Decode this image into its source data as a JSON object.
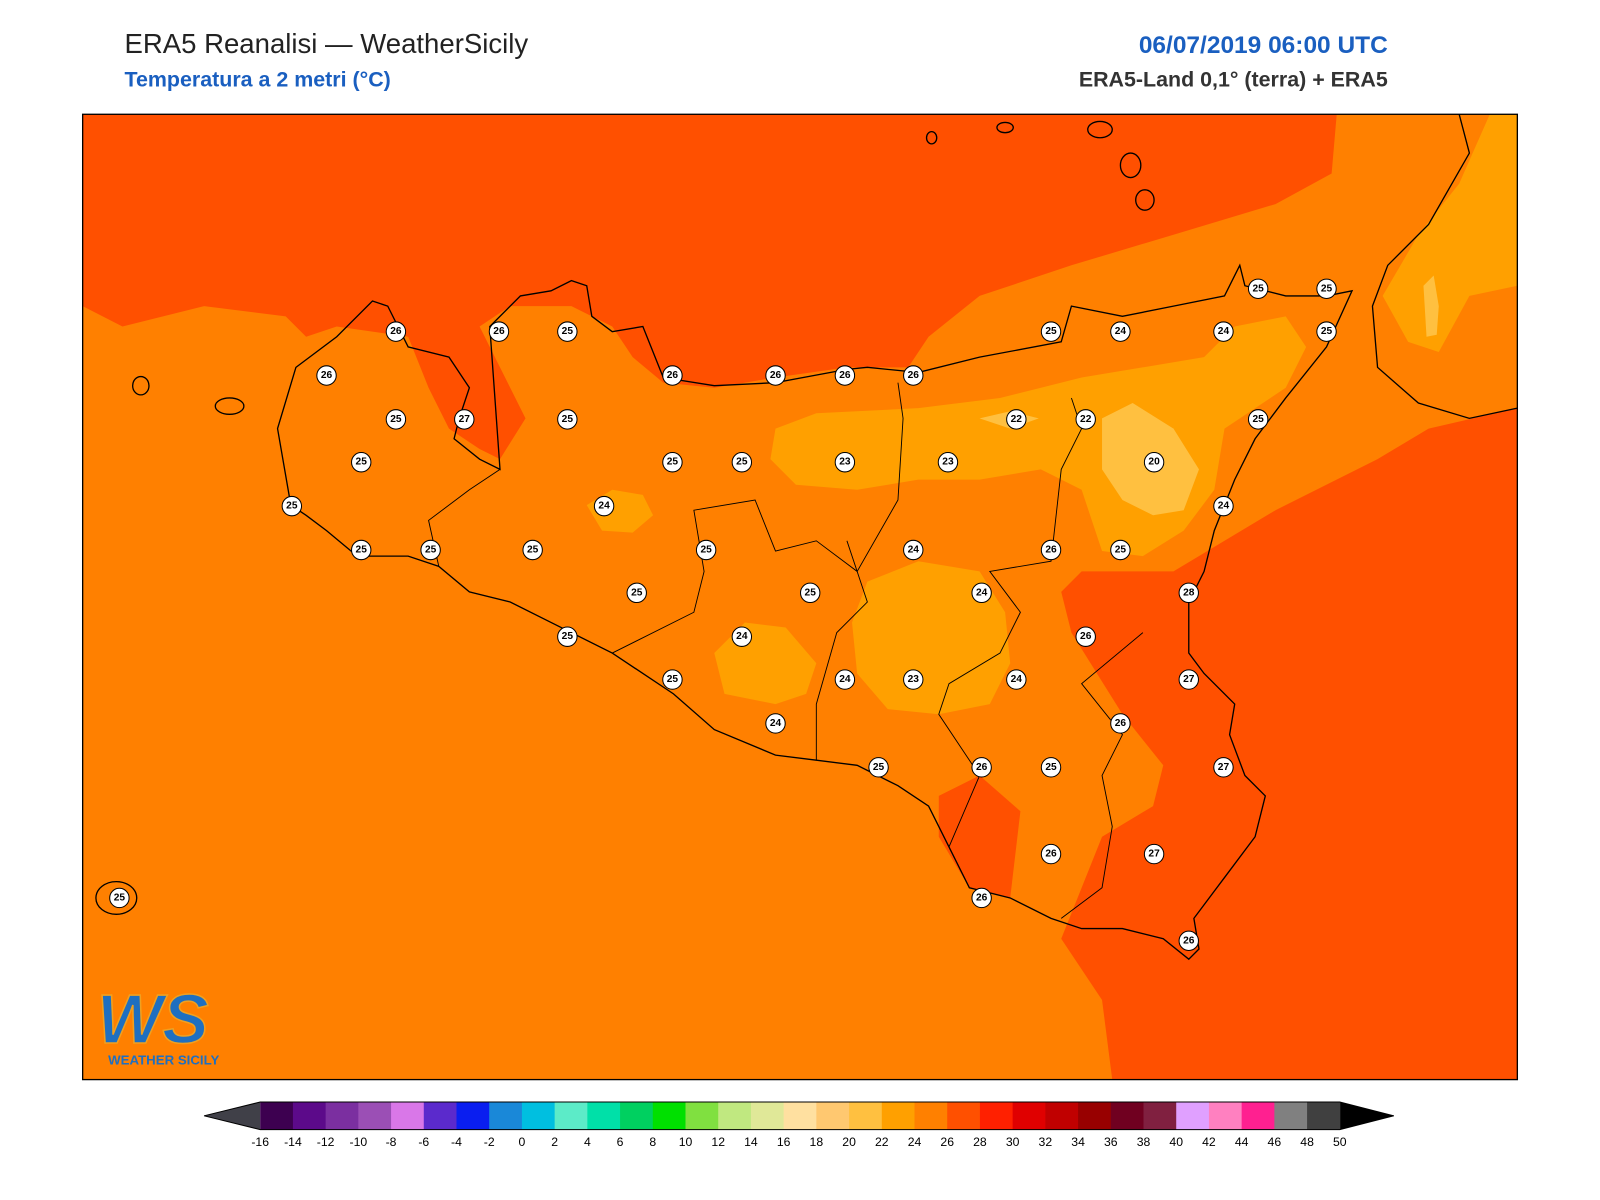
{
  "header": {
    "title": "ERA5 Reanalisi — WeatherSicily",
    "subtitle": "Temperatura a 2 metri (°C)",
    "date": "06/07/2019 06:00 UTC",
    "source": "ERA5-Land 0,1° (terra) + ERA5"
  },
  "logo": {
    "mark": "WS",
    "tagline": "WEATHER SICILY"
  },
  "map": {
    "stations": [
      26,
      26,
      25,
      26,
      25,
      27,
      25,
      25,
      25,
      25,
      25,
      25,
      24,
      26,
      26,
      26,
      26,
      25,
      25,
      23,
      23,
      22,
      22,
      20,
      25,
      24,
      24,
      25,
      25,
      25,
      25,
      24,
      25,
      24,
      26,
      25,
      25,
      25,
      24,
      28,
      25,
      24,
      26,
      25,
      24,
      23,
      24,
      27,
      24,
      26,
      25,
      26,
      25,
      27,
      26,
      27,
      26,
      26,
      25
    ]
  },
  "colorbar": {
    "ticks": [
      -16,
      -14,
      -12,
      -10,
      -8,
      -6,
      -4,
      -2,
      0,
      2,
      4,
      6,
      8,
      10,
      12,
      14,
      16,
      18,
      20,
      22,
      24,
      26,
      28,
      30,
      32,
      34,
      36,
      38,
      40,
      42,
      44,
      46,
      48,
      50
    ],
    "colors": [
      "#3d0050",
      "#5c0a8a",
      "#7b2fa0",
      "#9b4fb5",
      "#d977e8",
      "#5b2acc",
      "#0a1ef0",
      "#1a88d8",
      "#00bfe0",
      "#5cebc8",
      "#00e0a8",
      "#00d060",
      "#00e000",
      "#80e040",
      "#c0e880",
      "#e0e898",
      "#ffe0a0",
      "#ffc870",
      "#ffc040",
      "#ffa000",
      "#ff8000",
      "#ff5000",
      "#ff2000",
      "#e00000",
      "#c00000",
      "#980000",
      "#700020",
      "#802040",
      "#e0a0ff",
      "#ff80c0",
      "#ff2090",
      "#808080",
      "#404040"
    ],
    "under_color": "#404048",
    "over_color": "#000000"
  }
}
